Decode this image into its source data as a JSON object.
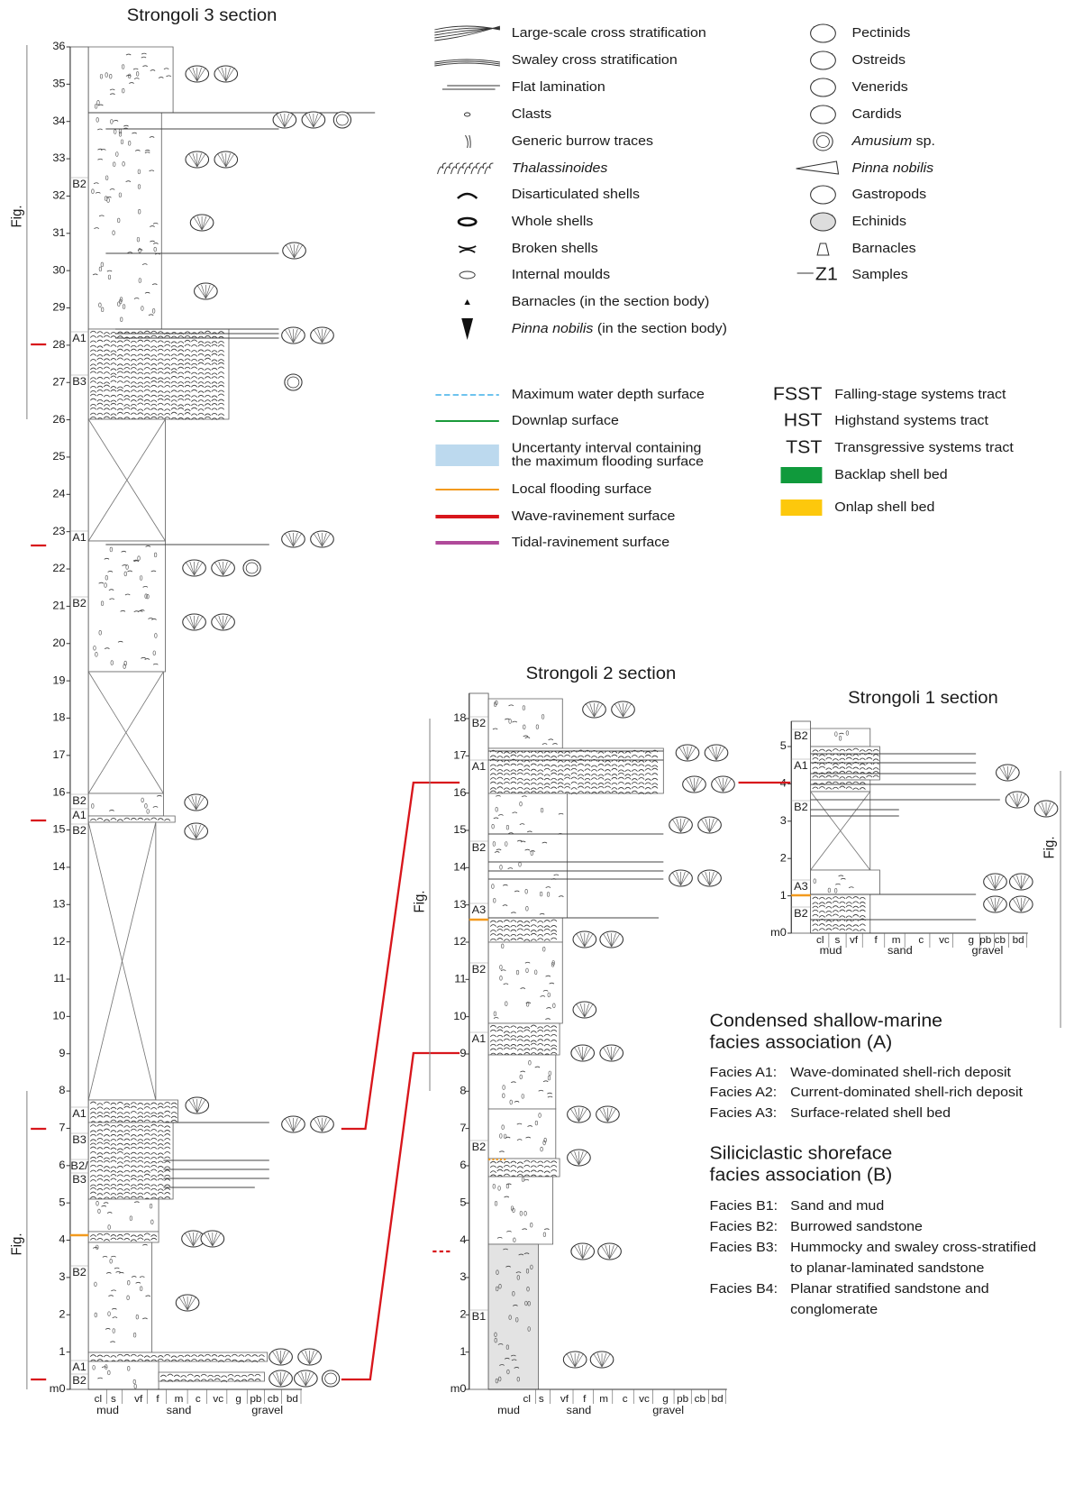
{
  "sections": [
    {
      "title": "Strongoli 3 section",
      "depth_ticks": [
        "36",
        "35",
        "34",
        "33",
        "32",
        "31",
        "30",
        "29",
        "28",
        "27",
        "26",
        "25",
        "24",
        "23",
        "22",
        "21",
        "20",
        "19",
        "18",
        "17",
        "16",
        "15",
        "14",
        "13",
        "12",
        "11",
        "10",
        "9",
        "8",
        "7",
        "6",
        "5",
        "4",
        "3",
        "2",
        "1",
        "m0"
      ],
      "facies_labels": [
        "B2",
        "A1",
        "B3",
        "A1",
        "B2",
        "B2",
        "A1",
        "B2",
        "A1",
        "B3",
        "B2/",
        "B3",
        "B2",
        "A1",
        "B2"
      ],
      "grain_sizes": [
        "cl",
        "s",
        "vf",
        "f",
        "m",
        "c",
        "vc",
        "g",
        "pb",
        "cb",
        "bd"
      ],
      "grain_groups": [
        "mud",
        "sand",
        "gravel"
      ]
    },
    {
      "title": "Strongoli 2 section",
      "depth_ticks": [
        "18",
        "17",
        "16",
        "15",
        "14",
        "13",
        "12",
        "11",
        "10",
        "9",
        "8",
        "7",
        "6",
        "5",
        "4",
        "3",
        "2",
        "1",
        "m0"
      ],
      "facies_labels": [
        "B2",
        "A1",
        "B2",
        "A3",
        "B2",
        "A1",
        "B2",
        "B1"
      ],
      "grain_sizes": [
        "cl",
        "s",
        "vf",
        "f",
        "m",
        "c",
        "vc",
        "g",
        "pb",
        "cb",
        "bd"
      ],
      "grain_groups": [
        "mud",
        "sand",
        "gravel"
      ]
    },
    {
      "title": "Strongoli 1 section",
      "depth_ticks": [
        "5",
        "4",
        "3",
        "2",
        "1",
        "m0"
      ],
      "facies_labels": [
        "B2",
        "A1",
        "B2",
        "A3",
        "B2"
      ],
      "grain_sizes": [
        "cl",
        "s",
        "vf",
        "f",
        "m",
        "c",
        "vc",
        "g",
        "pb",
        "cb",
        "bd"
      ],
      "grain_groups": [
        "mud",
        "sand",
        "gravel"
      ]
    }
  ],
  "fig_labels": [
    "Fig.",
    "Fig.",
    "Fig.",
    "Fig."
  ],
  "symbol_legend": {
    "left": [
      {
        "text": "Large-scale cross stratification"
      },
      {
        "text": "Swaley cross stratification"
      },
      {
        "text": "Flat lamination"
      },
      {
        "text": "Clasts"
      },
      {
        "text": "Generic burrow traces"
      },
      {
        "italic": "Thalassinoides"
      },
      {
        "text": "Disarticulated shells"
      },
      {
        "text": "Whole shells"
      },
      {
        "text": "Broken shells"
      },
      {
        "text": "Internal moulds"
      },
      {
        "text": "Barnacles (in the section body)"
      },
      {
        "italic": "Pinna nobilis",
        "text": " (in the section body)"
      }
    ],
    "right": [
      {
        "text": "Pectinids"
      },
      {
        "text": "Ostreids"
      },
      {
        "text": "Venerids"
      },
      {
        "text": "Cardids"
      },
      {
        "italic": "Amusium",
        "text": " sp."
      },
      {
        "italic": "Pinna nobilis"
      },
      {
        "text": "Gastropods"
      },
      {
        "text": "Echinids"
      },
      {
        "text": "Barnacles"
      },
      {
        "marker": "Z1",
        "text": "Samples"
      }
    ]
  },
  "surface_legend": [
    {
      "lines": [
        "Maximum water depth surface"
      ],
      "color": "#6ec3ee"
    },
    {
      "lines": [
        "Downlap surface"
      ],
      "color": "#1a9a3a"
    },
    {
      "lines": [
        "Uncertanty interval containing",
        "the maximum flooding surface"
      ],
      "color": "#bcd9ee"
    },
    {
      "lines": [
        "Local flooding surface"
      ],
      "color": "#f39a1e"
    },
    {
      "lines": [
        "Wave-ravinement surface"
      ],
      "color": "#d8161c"
    },
    {
      "lines": [
        "Tidal-ravinement surface"
      ],
      "color": "#b04a9a"
    }
  ],
  "tract_legend": [
    {
      "abbr": "FSST",
      "text": "Falling-stage systems tract"
    },
    {
      "abbr": "HST",
      "text": "Highstand systems tract"
    },
    {
      "abbr": "TST",
      "text": "Transgressive systems tract"
    },
    {
      "text": "Backlap shell bed",
      "color": "#109a3c"
    },
    {
      "text": "Onlap shell bed",
      "color": "#fdc80c"
    }
  ],
  "facies_associations": [
    {
      "title": [
        "Condensed shallow-marine",
        "facies association (A)"
      ],
      "facies": [
        {
          "code": "Facies A1:",
          "description": [
            "Wave-dominated shell-rich deposit"
          ]
        },
        {
          "code": "Facies A2:",
          "description": [
            "Current-dominated shell-rich deposit"
          ]
        },
        {
          "code": "Facies A3:",
          "description": [
            "Surface-related shell bed"
          ]
        }
      ]
    },
    {
      "title": [
        "Siliciclastic shoreface",
        "facies association (B)"
      ],
      "facies": [
        {
          "code": "Facies B1:",
          "description": [
            "Sand and mud"
          ]
        },
        {
          "code": "Facies B2:",
          "description": [
            "Burrowed sandstone"
          ]
        },
        {
          "code": "Facies B3:",
          "description": [
            "Hummocky and swaley cross-stratified",
            "to planar-laminated sandstone"
          ]
        },
        {
          "code": "Facies B4:",
          "description": [
            "Planar stratified sandstone and",
            "conglomerate"
          ]
        }
      ]
    }
  ]
}
